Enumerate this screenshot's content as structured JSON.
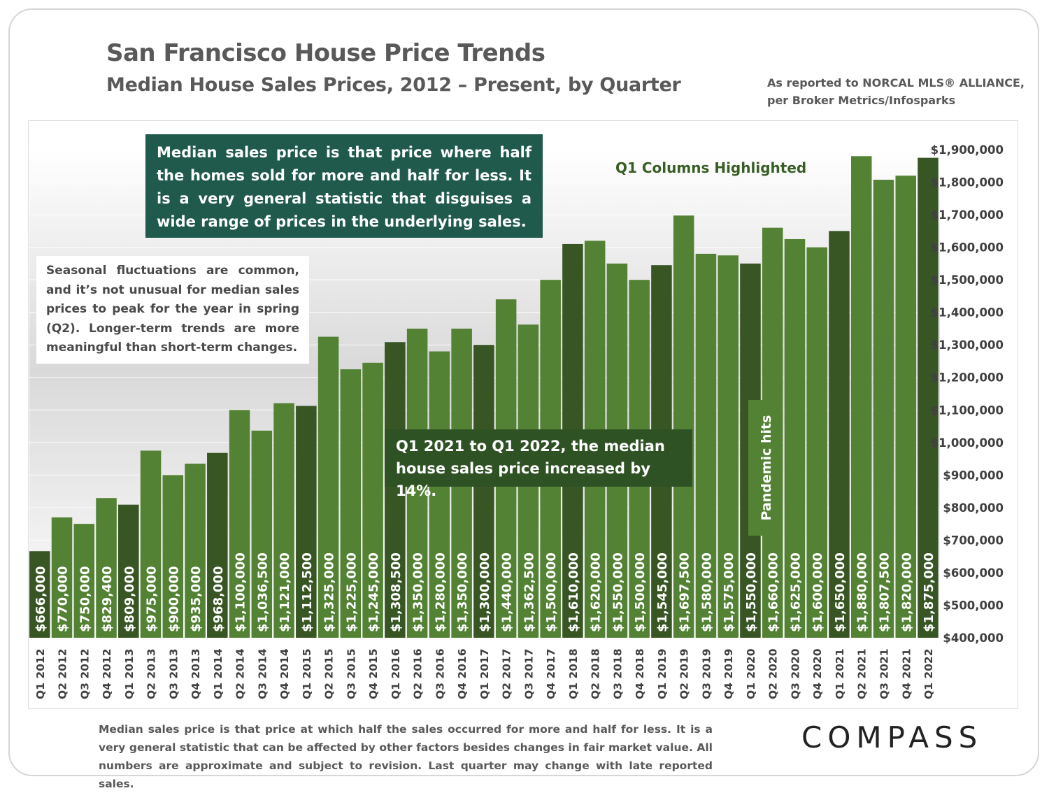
{
  "header": {
    "title": "San Francisco House Price Trends",
    "subtitle": "Median House Sales Prices, 2012 – Present, by Quarter",
    "source_line1": "As reported to NORCAL MLS® ALLIANCE,",
    "source_line2": "per Broker Metrics/Infosparks"
  },
  "annotations": {
    "median_definition": "Median sales price is that price where half the homes sold for more and half for less. It is a very general statistic that disguises a wide range of prices in the underlying sales.",
    "seasonal": "Seasonal fluctuations are common, and it’s not unusual for median sales prices to peak for the year in spring (Q2). Longer-term trends are more meaningful than short-term changes.",
    "q1_highlight": "Q1 Columns Highlighted",
    "yoy_change": "Q1 2021 to Q1 2022, the median house sales price increased by 14%.",
    "pandemic": "Pandemic hits"
  },
  "footnote": "Median sales price is that price at which half the sales occurred for more and half for less. It is a very general statistic that can be affected by other factors besides changes in fair market value. All numbers are approximate and subject to revision. Last quarter may change with late reported sales.",
  "logo": "COMPASS",
  "colors": {
    "q1_bar": "#375623",
    "other_bar": "#548235",
    "callout_teal": "#1f5a4c",
    "callout_green": "#2f5224",
    "pandemic_box": "#548235"
  },
  "chart_data": {
    "type": "bar",
    "title": "Median House Sales Prices, 2012 – Present, by Quarter",
    "xlabel": "",
    "ylabel": "",
    "ylim": [
      400000,
      1900000
    ],
    "yticks": [
      400000,
      500000,
      600000,
      700000,
      800000,
      900000,
      1000000,
      1100000,
      1200000,
      1300000,
      1400000,
      1500000,
      1600000,
      1700000,
      1800000,
      1900000
    ],
    "ytick_labels": [
      "$400,000",
      "$500,000",
      "$600,000",
      "$700,000",
      "$800,000",
      "$900,000",
      "$1,000,000",
      "$1,100,000",
      "$1,200,000",
      "$1,300,000",
      "$1,400,000",
      "$1,500,000",
      "$1,600,000",
      "$1,700,000",
      "$1,800,000",
      "$1,900,000"
    ],
    "y_axis_position": "right",
    "categories": [
      "Q1 2012",
      "Q2 2012",
      "Q3 2012",
      "Q4 2012",
      "Q1 2013",
      "Q2 2013",
      "Q3 2013",
      "Q4 2013",
      "Q1 2014",
      "Q2 2014",
      "Q3 2014",
      "Q4 2014",
      "Q1 2015",
      "Q2 2015",
      "Q3 2015",
      "Q4 2015",
      "Q1 2016",
      "Q2 2016",
      "Q3 2016",
      "Q4 2016",
      "Q1 2017",
      "Q2 2017",
      "Q3 2017",
      "Q4 2017",
      "Q1 2018",
      "Q2 2018",
      "Q3 2018",
      "Q4 2018",
      "Q1 2019",
      "Q2 2019",
      "Q3 2019",
      "Q4 2019",
      "Q1 2020",
      "Q2 2020",
      "Q3 2020",
      "Q4 2020",
      "Q1 2021",
      "Q2 2021",
      "Q3 2021",
      "Q4 2021",
      "Q1 2022"
    ],
    "values": [
      666000,
      770000,
      750000,
      829400,
      809000,
      975000,
      900000,
      935000,
      968000,
      1100000,
      1036500,
      1121000,
      1112500,
      1325000,
      1225000,
      1245000,
      1308500,
      1350000,
      1280000,
      1350000,
      1300000,
      1440000,
      1362500,
      1500000,
      1610000,
      1620000,
      1550000,
      1500000,
      1545000,
      1697500,
      1580000,
      1575000,
      1550000,
      1660000,
      1625000,
      1600000,
      1650000,
      1880000,
      1807500,
      1820000,
      1875000
    ],
    "value_labels": [
      "$666,000",
      "$770,000",
      "$750,000",
      "$829,400",
      "$809,000",
      "$975,000",
      "$900,000",
      "$935,000",
      "$968,000",
      "$1,100,000",
      "$1,036,500",
      "$1,121,000",
      "$1,112,500",
      "$1,325,000",
      "$1,225,000",
      "$1,245,000",
      "$1,308,500",
      "$1,350,000",
      "$1,280,000",
      "$1,350,000",
      "$1,300,000",
      "$1,440,000",
      "$1,362,500",
      "$1,500,000",
      "$1,610,000",
      "$1,620,000",
      "$1,550,000",
      "$1,500,000",
      "$1,545,000",
      "$1,697,500",
      "$1,580,000",
      "$1,575,000",
      "$1,550,000",
      "$1,660,000",
      "$1,625,000",
      "$1,600,000",
      "$1,650,000",
      "$1,880,000",
      "$1,807,500",
      "$1,820,000",
      "$1,875,000"
    ],
    "highlight": "Q1 columns",
    "grid": true,
    "legend": "none"
  }
}
